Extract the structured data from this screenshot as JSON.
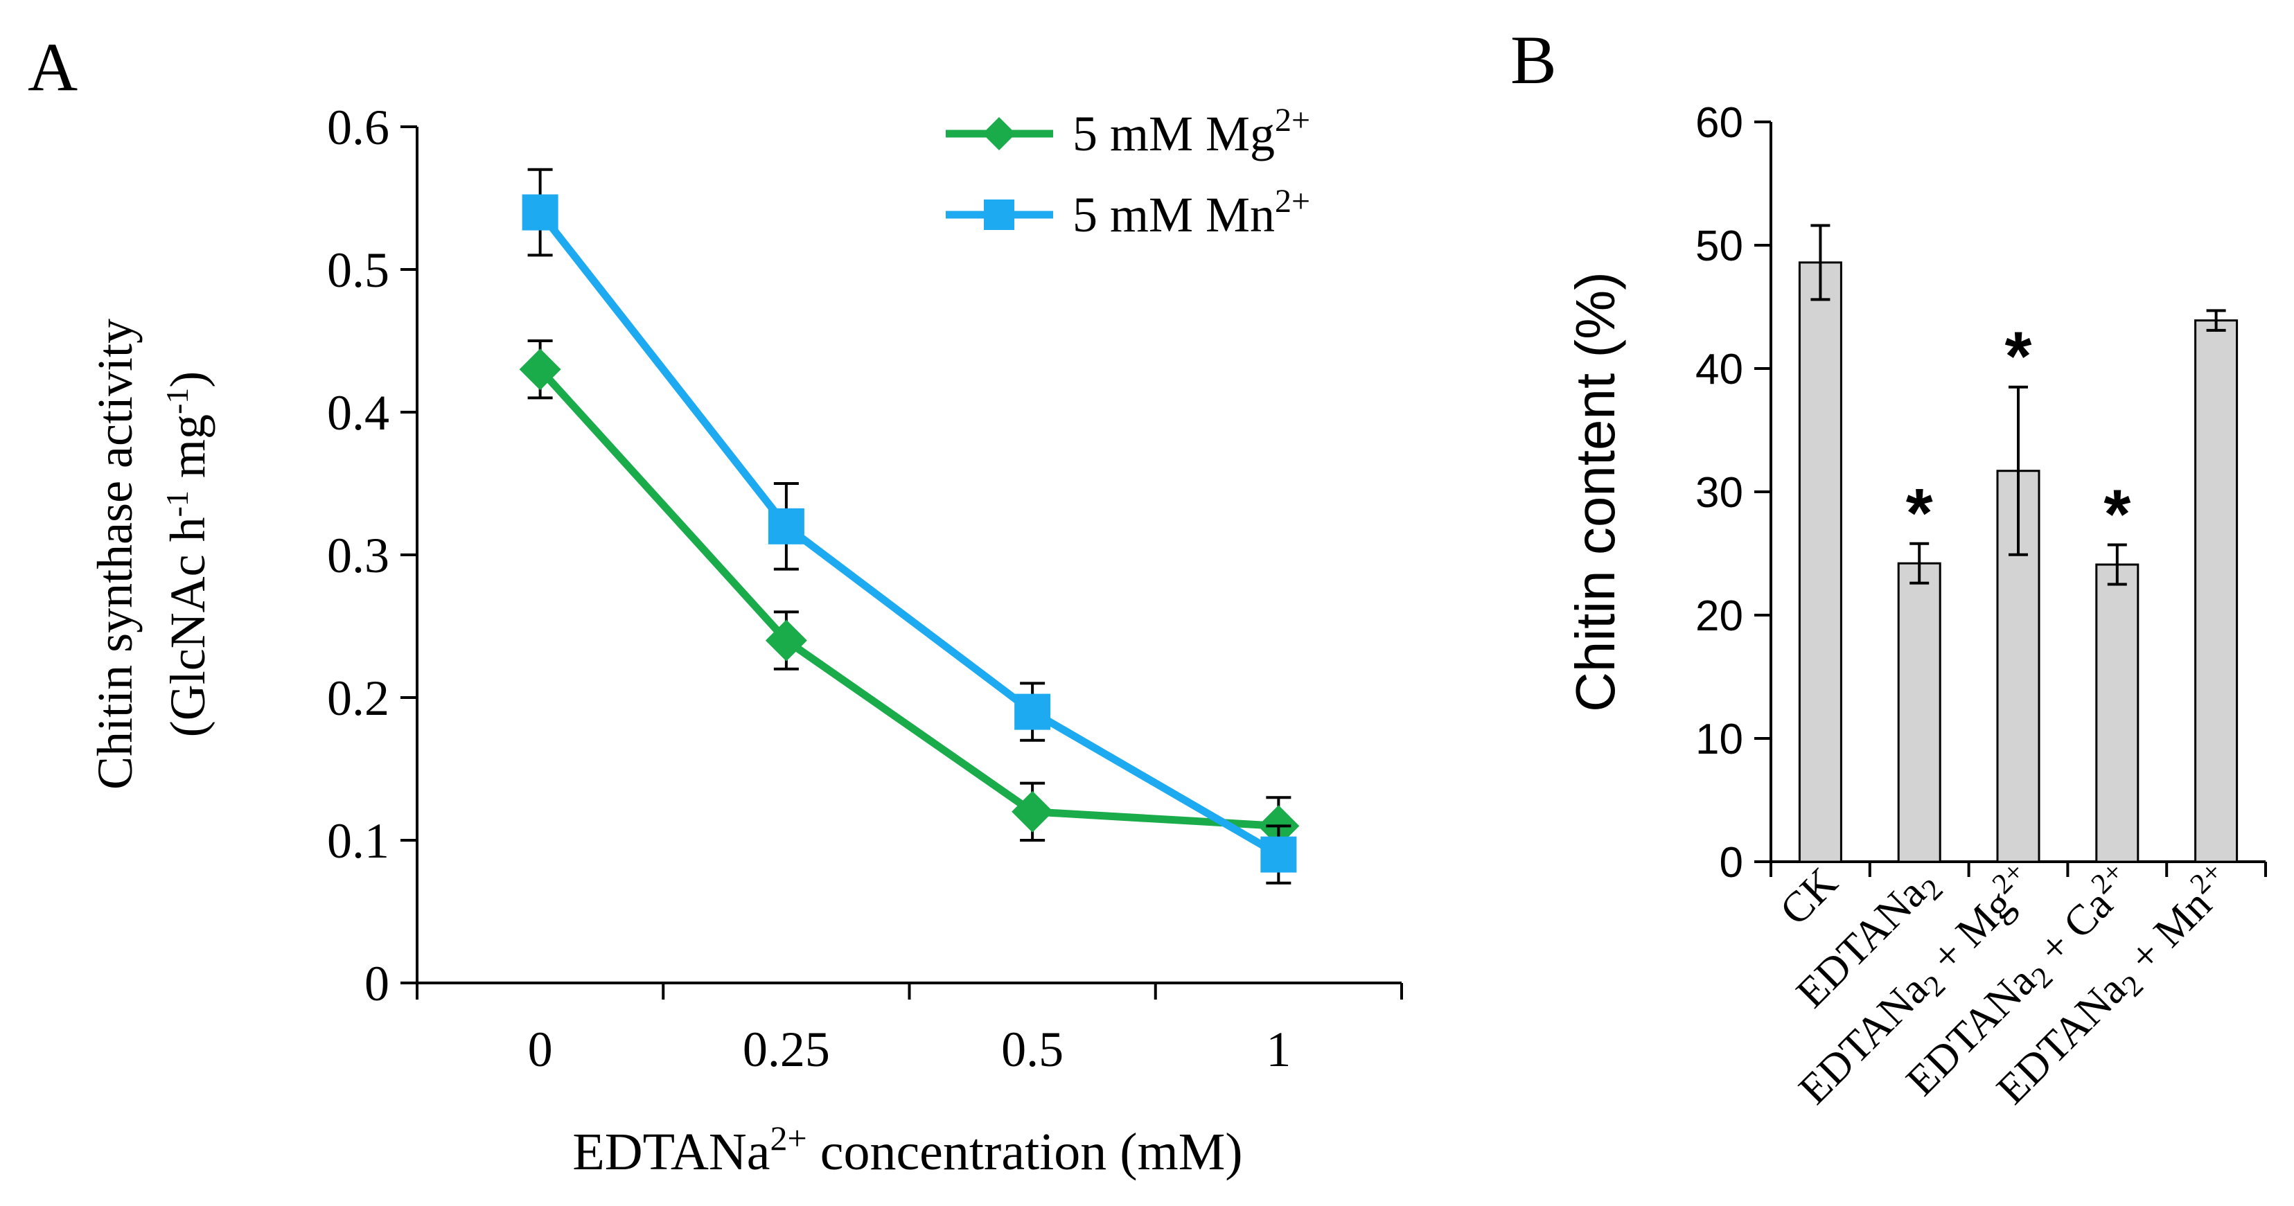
{
  "chart_data": [
    {
      "panel_label": "A",
      "type": "line",
      "title": "",
      "categories": [
        "0",
        "0.25",
        "0.5",
        "1"
      ],
      "xlabel": {
        "main": "EDTANa",
        "sup": "2+",
        "rest": " concentration (mM)"
      },
      "ylabel": {
        "line1": "Chitin synthase activity",
        "line2_a": "(GlcNAc h",
        "line2_sup1": "-1",
        "line2_b": " mg",
        "line2_sup2": "-1",
        "line2_c": ")"
      },
      "ylim": [
        0,
        0.6
      ],
      "yticks": [
        "0",
        "0.1",
        "0.2",
        "0.3",
        "0.4",
        "0.5",
        "0.6"
      ],
      "legend_position": "top-right",
      "series": [
        {
          "name": "5 mM Mg",
          "name_sup": "2+",
          "marker": "diamond",
          "color": "#1aab4b",
          "values": [
            0.43,
            0.24,
            0.12,
            0.11
          ],
          "errors": [
            0.02,
            0.02,
            0.02,
            0.02
          ]
        },
        {
          "name": "5 mM Mn",
          "name_sup": "2+",
          "marker": "square",
          "color": "#1eaaf1",
          "values": [
            0.54,
            0.32,
            0.19,
            0.09
          ],
          "errors": [
            0.03,
            0.03,
            0.02,
            0.02
          ]
        }
      ]
    },
    {
      "panel_label": "B",
      "type": "bar",
      "title": "",
      "categories": [
        {
          "main": "CK",
          "sub": "",
          "tail": "",
          "sup": ""
        },
        {
          "main": "EDTANa",
          "sub": "2",
          "tail": "",
          "sup": ""
        },
        {
          "main": "EDTANa",
          "sub": "2",
          "tail": " + Mg",
          "sup": "2+"
        },
        {
          "main": "EDTANa",
          "sub": "2",
          "tail": " + Ca",
          "sup": "2+"
        },
        {
          "main": "EDTANa",
          "sub": "2",
          "tail": " + Mn",
          "sup": "2+"
        }
      ],
      "values": [
        48.6,
        24.2,
        31.7,
        24.1,
        43.9
      ],
      "errors": [
        3.0,
        1.6,
        6.8,
        1.6,
        0.8
      ],
      "significance": [
        "",
        "*",
        "*",
        "*",
        ""
      ],
      "bar_color": "#d3d3d3",
      "xlabel": "",
      "ylabel": "Chitin content (%)",
      "ylim": [
        0,
        60
      ],
      "yticks": [
        "0",
        "10",
        "20",
        "30",
        "40",
        "50",
        "60"
      ]
    }
  ]
}
